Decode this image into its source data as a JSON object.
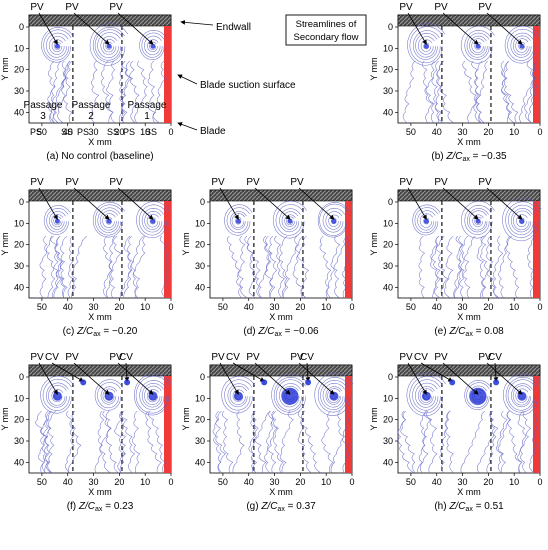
{
  "legend_box": [
    "Streamlines of",
    "Secondary flow"
  ],
  "labels": {
    "endwall": "Endwall",
    "suction": "Blade suction surface",
    "blade": "Blade",
    "pv": "PV",
    "cv": "CV",
    "passages": [
      "Passage 3",
      "Passage 2",
      "Passage 1"
    ],
    "ps": "PS",
    "ss": "SS",
    "x_axis": "X mm",
    "y_axis": "Y mm"
  },
  "axes": {
    "x_ticks": [
      "50",
      "40",
      "30",
      "20",
      "10",
      "0"
    ],
    "y_ticks": [
      "0",
      "10",
      "20",
      "30",
      "40"
    ]
  },
  "panels": [
    {
      "prefix": "(a)",
      "caption": "No control (baseline)",
      "value": "",
      "cv_count": 0
    },
    {
      "prefix": "(b)",
      "caption": "Z/C",
      "value": "= −0.35",
      "cv_count": 0
    },
    {
      "prefix": "(c)",
      "caption": "Z/C",
      "value": "= −0.20",
      "cv_count": 0
    },
    {
      "prefix": "(d)",
      "caption": "Z/C",
      "value": "= −0.06",
      "cv_count": 0
    },
    {
      "prefix": "(e)",
      "caption": "Z/C",
      "value": "= 0.08",
      "cv_count": 0
    },
    {
      "prefix": "(f)",
      "caption": "Z/C",
      "value": "= 0.23",
      "cv_count": 2
    },
    {
      "prefix": "(g)",
      "caption": "Z/C",
      "value": "= 0.37",
      "cv_count": 2
    },
    {
      "prefix": "(h)",
      "caption": "Z/C",
      "value": "= 0.51",
      "cv_count": 2
    }
  ],
  "colors": {
    "streamline": "#5a5ec4",
    "vortex": "#1f2fd6",
    "blade": "#f03a3a",
    "endwall": "#5a5a5a"
  }
}
